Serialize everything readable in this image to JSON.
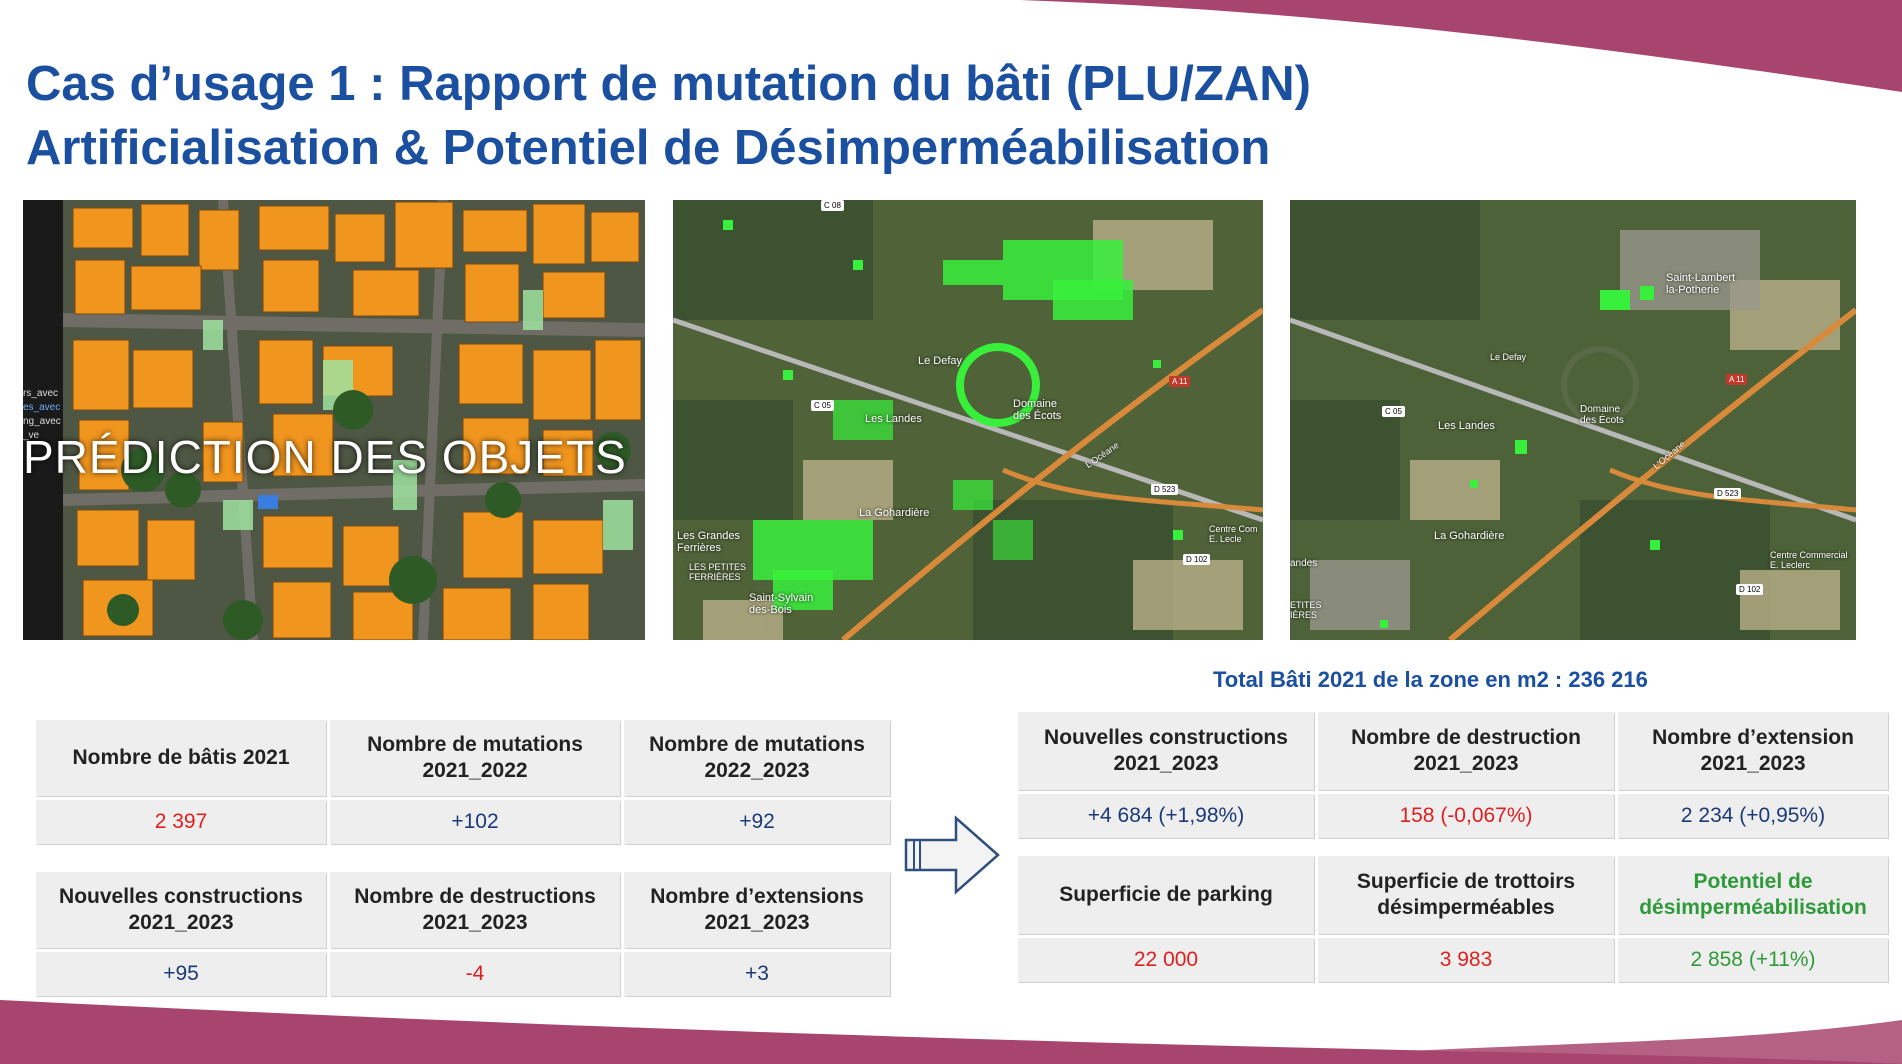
{
  "title": {
    "line1": "Cas d’usage 1 : Rapport de mutation du bâti (PLU/ZAN)",
    "line2": "Artificialisation & Potentiel de Désimperméabilisation"
  },
  "images": {
    "prediction": {
      "overlay_text": "PRÉDICTION DES OBJETS",
      "side_labels": [
        "rs_avec",
        "es_avec",
        "ng_avec",
        "_ve"
      ]
    },
    "map_before": {
      "labels": [
        "Le Defay",
        "Domaine des Écots",
        "Les Landes",
        "La Gohardière",
        "Les Grandes Ferrières",
        "LES PETITES FERRIÈRES",
        "Saint-Sylvain des-Bois",
        "Centre Com E. Lecle",
        "L'Océane"
      ],
      "road_labels": [
        "C 08",
        "C 05",
        "A 11",
        "D 523",
        "D 102"
      ]
    },
    "map_after": {
      "labels": [
        "Saint-Lambert la-Potherie",
        "Le Defay",
        "Domaine des Écots",
        "Les Landes",
        "La Gohardière",
        "Centre Commercial E. Leclerc",
        "L'Océane",
        "andes",
        "ETITES IÈRES"
      ],
      "road_labels": [
        "C 05",
        "A 11",
        "D 523",
        "D 102"
      ]
    }
  },
  "left_table": {
    "row1_headers": [
      "Nombre de bâtis 2021",
      "Nombre de mutations 2021_2022",
      "Nombre de mutations 2022_2023"
    ],
    "row1_values": [
      "2 397",
      "+102",
      "+92"
    ],
    "row2_headers": [
      "Nouvelles constructions 2021_2023",
      "Nombre de destructions 2021_2023",
      "Nombre d’extensions 2021_2023"
    ],
    "row2_values": [
      "+95",
      "-4",
      "+3"
    ]
  },
  "total_label": "Total Bâti 2021 de la zone en m2 : 236 216",
  "right_table": {
    "row1_headers": [
      "Nouvelles constructions 2021_2023",
      "Nombre de destruction 2021_2023",
      "Nombre d’extension 2021_2023"
    ],
    "row1_values": [
      "+4 684 (+1,98%)",
      "158 (-0,067%)",
      "2 234 (+0,95%)"
    ],
    "row2_headers": [
      "Superficie de parking",
      "Superficie de trottoirs désimperméables",
      "Potentiel de désimperméabilisation"
    ],
    "row2_values": [
      "22 000",
      "3 983",
      "2 858 (+11%)"
    ]
  },
  "colors": {
    "title_blue": "#1b4fa0",
    "accent_magenta": "#a8456f",
    "value_red": "#e02020",
    "value_green": "#2f9a3a",
    "value_navy": "#1b3a78"
  },
  "icons": [
    "arrow-right-icon"
  ]
}
